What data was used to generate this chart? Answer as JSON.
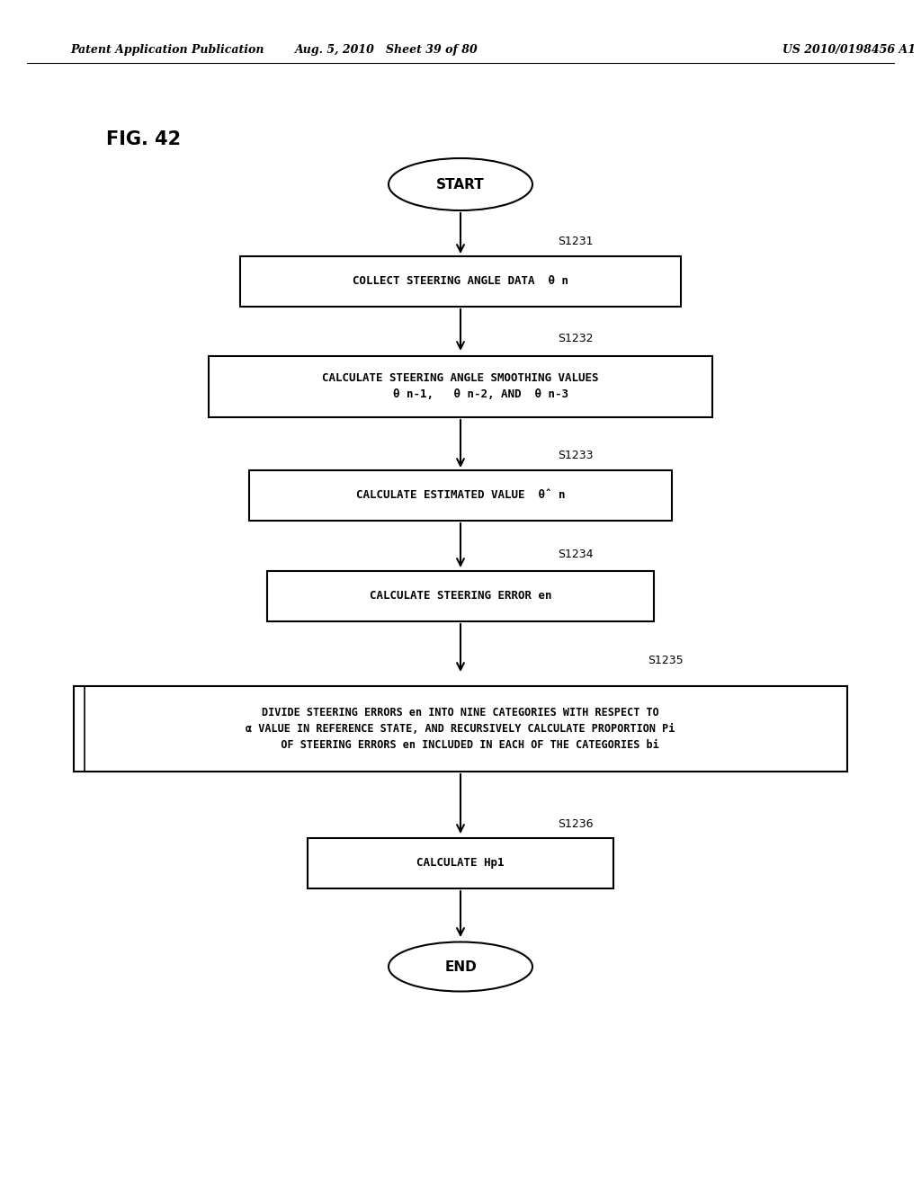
{
  "header_left": "Patent Application Publication",
  "header_mid": "Aug. 5, 2010   Sheet 39 of 80",
  "header_right": "US 2010/0198456 A1",
  "fig_label": "FIG. 42",
  "bg_color": "#ffffff",
  "text_color": "#000000",
  "start_label": "START",
  "end_label": "END",
  "s1231_label": "COLLECT STEERING ANGLE DATA  θ n",
  "s1232_label": "CALCULATE STEERING ANGLE SMOOTHING VALUES\n      θ n-1,   θ n-2, AND  θ n-3",
  "s1233_label": "CALCULATE ESTIMATED VALUE  θ̂ n",
  "s1234_label": "CALCULATE STEERING ERROR en",
  "s1235_line1": "DIVIDE STEERING ERRORS en INTO NINE CATEGORIES WITH RESPECT TO",
  "s1235_line2": "α VALUE IN REFERENCE STATE, AND RECURSIVELY CALCULATE PROPORTION Pi",
  "s1235_line3": "   OF STEERING ERRORS en INCLUDED IN EACH OF THE CATEGORIES bi",
  "s1236_label": "CALCULATE Hp1",
  "steps": [
    "S1231",
    "S1232",
    "S1233",
    "S1234",
    "S1235",
    "S1236"
  ]
}
